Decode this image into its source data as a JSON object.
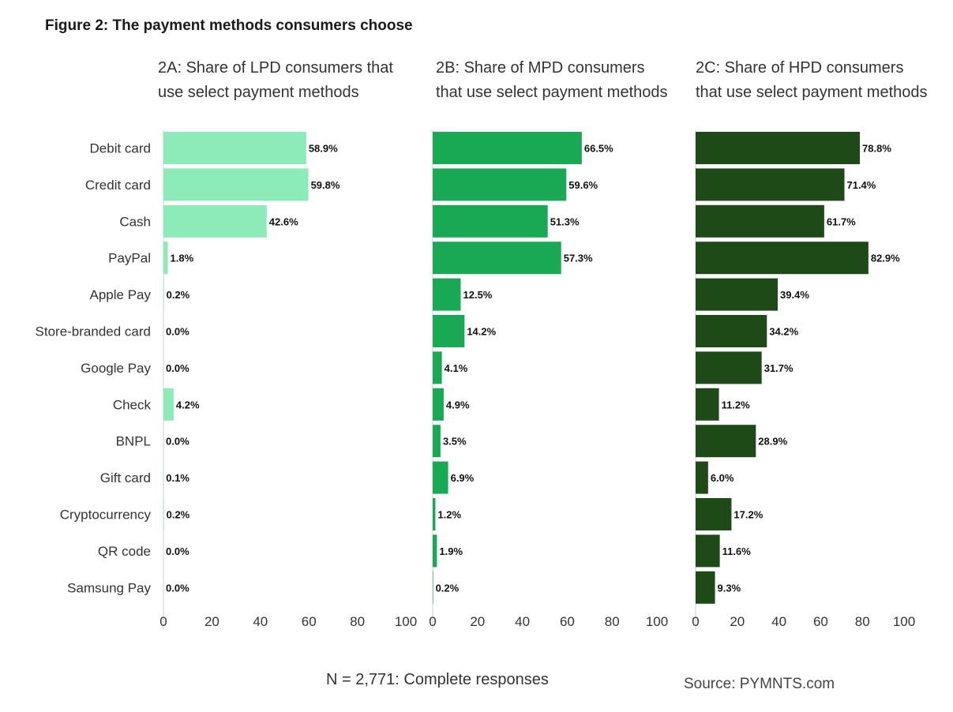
{
  "figure_title": "Figure 2: The payment methods consumers choose",
  "footnote": "N = 2,771: Complete responses",
  "source": "Source: PYMNTS.com",
  "colors": {
    "lpd": "#8cebb8",
    "mpd": "#19a853",
    "hpd": "#1e4a17"
  },
  "chart_data": [
    {
      "type": "bar",
      "orientation": "horizontal",
      "title": "2A: Share of LPD consumers that use select payment methods",
      "categories": [
        "Debit card",
        "Credit card",
        "Cash",
        "PayPal",
        "Apple Pay",
        "Store-branded card",
        "Google Pay",
        "Check",
        "BNPL",
        "Gift card",
        "Cryptocurrency",
        "QR code",
        "Samsung Pay"
      ],
      "values": [
        58.9,
        59.8,
        42.6,
        1.8,
        0.2,
        0.0,
        0.0,
        4.2,
        0.0,
        0.1,
        0.2,
        0.0,
        0.0
      ],
      "value_labels": [
        "58.9%",
        "59.8%",
        "42.6%",
        "1.8%",
        "0.2%",
        "0.0%",
        "0.0%",
        "4.2%",
        "0.0%",
        "0.1%",
        "0.2%",
        "0.0%",
        "0.0%"
      ],
      "xlim": [
        0,
        100
      ],
      "xticks": [
        "0",
        "20",
        "40",
        "60",
        "80",
        "100"
      ],
      "color": "#8cebb8"
    },
    {
      "type": "bar",
      "orientation": "horizontal",
      "title": "2B: Share of MPD consumers that use select payment methods",
      "categories": [
        "Debit card",
        "Credit card",
        "Cash",
        "PayPal",
        "Apple Pay",
        "Store-branded card",
        "Google Pay",
        "Check",
        "BNPL",
        "Gift card",
        "Cryptocurrency",
        "QR code",
        "Samsung Pay"
      ],
      "values": [
        66.5,
        59.6,
        51.3,
        57.3,
        12.5,
        14.2,
        4.1,
        4.9,
        3.5,
        6.9,
        1.2,
        1.9,
        0.2
      ],
      "value_labels": [
        "66.5%",
        "59.6%",
        "51.3%",
        "57.3%",
        "12.5%",
        "14.2%",
        "4.1%",
        "4.9%",
        "3.5%",
        "6.9%",
        "1.2%",
        "1.9%",
        "0.2%"
      ],
      "xlim": [
        0,
        100
      ],
      "xticks": [
        "0",
        "20",
        "40",
        "60",
        "80",
        "100"
      ],
      "color": "#19a853"
    },
    {
      "type": "bar",
      "orientation": "horizontal",
      "title": "2C: Share of HPD consumers that use select payment methods",
      "categories": [
        "Debit card",
        "Credit card",
        "Cash",
        "PayPal",
        "Apple Pay",
        "Store-branded card",
        "Google Pay",
        "Check",
        "BNPL",
        "Gift card",
        "Cryptocurrency",
        "QR code",
        "Samsung Pay"
      ],
      "values": [
        78.8,
        71.4,
        61.7,
        82.9,
        39.4,
        34.2,
        31.7,
        11.2,
        28.9,
        6.0,
        17.2,
        11.6,
        9.3
      ],
      "value_labels": [
        "78.8%",
        "71.4%",
        "61.7%",
        "82.9%",
        "39.4%",
        "34.2%",
        "31.7%",
        "11.2%",
        "28.9%",
        "6.0%",
        "17.2%",
        "11.6%",
        "9.3%"
      ],
      "xlim": [
        0,
        100
      ],
      "xticks": [
        "0",
        "20",
        "40",
        "60",
        "80",
        "100"
      ],
      "color": "#1e4a17"
    }
  ]
}
